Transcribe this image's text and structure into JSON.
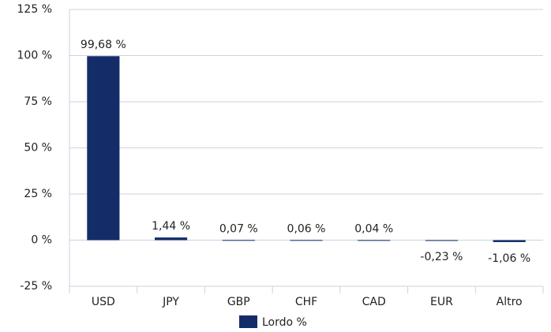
{
  "chart_data": {
    "type": "bar",
    "categories": [
      "USD",
      "JPY",
      "GBP",
      "CHF",
      "CAD",
      "EUR",
      "Altro"
    ],
    "series": [
      {
        "name": "Lordo %",
        "color": "#142d69",
        "values": [
          99.68,
          1.44,
          0.07,
          0.06,
          0.04,
          -0.23,
          -1.06
        ],
        "value_labels": [
          "99,68 %",
          "1,44 %",
          "0,07 %",
          "0,06 %",
          "0,04 %",
          "-0,23 %",
          "-1,06 %"
        ]
      }
    ],
    "ylim": [
      -25,
      125
    ],
    "yticks": [
      {
        "value": -25,
        "label": "-25 %"
      },
      {
        "value": 0,
        "label": "0 %"
      },
      {
        "value": 25,
        "label": "25 %"
      },
      {
        "value": 50,
        "label": "50 %"
      },
      {
        "value": 75,
        "label": "75 %"
      },
      {
        "value": 100,
        "label": "100 %"
      },
      {
        "value": 125,
        "label": "125 %"
      }
    ],
    "grid": true,
    "legend": "bottom"
  }
}
